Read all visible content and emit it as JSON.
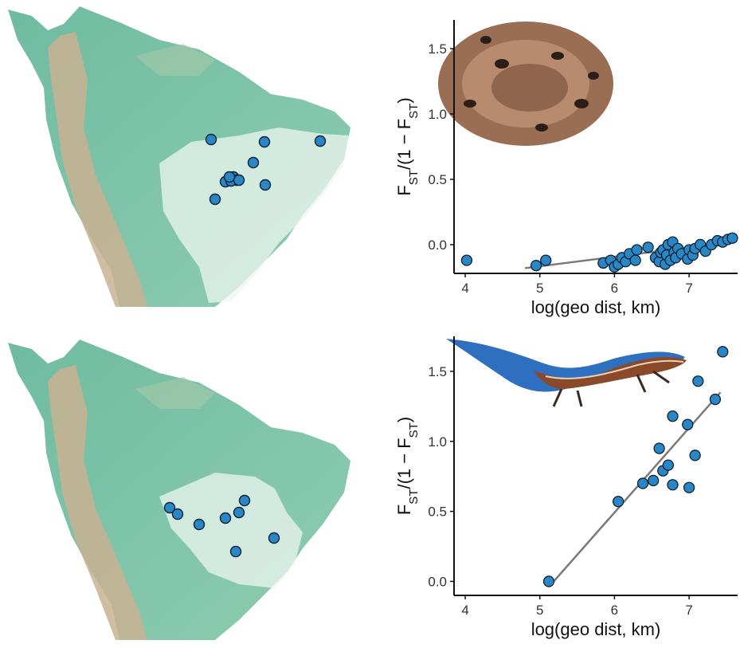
{
  "colors": {
    "point_fill": "#2a86c4",
    "point_stroke": "#0c2335",
    "fit_line": "#7a7a7a",
    "map_ocean": "#ffffff",
    "map_lowland": "#78c0a5",
    "map_highland": "#c9b18f",
    "range_fill": "#eef6ef"
  },
  "chart_data": [
    {
      "type": "scatter",
      "title": "",
      "subject": "pit viper (snake photo inset)",
      "xlabel": "log(geo dist, km)",
      "ylabel_main": "F",
      "ylabel_sub1": "ST",
      "ylabel_mid": "/(1 − F",
      "ylabel_sub2": "ST",
      "ylabel_end": ")",
      "xlim": [
        3.85,
        7.65
      ],
      "ylim": [
        -0.22,
        1.72
      ],
      "xticks": [
        4,
        5,
        6,
        7
      ],
      "yticks": [
        0.0,
        0.5,
        1.0,
        1.5
      ],
      "ytick_labels": [
        "0.0",
        "0.5",
        "1.0",
        "1.5"
      ],
      "xtick_labels": [
        "4",
        "5",
        "6",
        "7"
      ],
      "grid": false,
      "fit_line": {
        "x": [
          4.8,
          7.55
        ],
        "y": [
          -0.18,
          0.02
        ]
      },
      "points": [
        {
          "x": 4.02,
          "y": -0.12
        },
        {
          "x": 4.95,
          "y": -0.16
        },
        {
          "x": 5.08,
          "y": -0.12
        },
        {
          "x": 5.85,
          "y": -0.14
        },
        {
          "x": 5.95,
          "y": -0.12
        },
        {
          "x": 6.0,
          "y": -0.17
        },
        {
          "x": 6.05,
          "y": -0.15
        },
        {
          "x": 6.1,
          "y": -0.1
        },
        {
          "x": 6.15,
          "y": -0.13
        },
        {
          "x": 6.2,
          "y": -0.07
        },
        {
          "x": 6.28,
          "y": -0.12
        },
        {
          "x": 6.3,
          "y": -0.04
        },
        {
          "x": 6.45,
          "y": -0.02
        },
        {
          "x": 6.55,
          "y": -0.1
        },
        {
          "x": 6.6,
          "y": -0.13
        },
        {
          "x": 6.62,
          "y": -0.06
        },
        {
          "x": 6.65,
          "y": -0.04
        },
        {
          "x": 6.68,
          "y": -0.15
        },
        {
          "x": 6.7,
          "y": -0.08
        },
        {
          "x": 6.72,
          "y": 0.0
        },
        {
          "x": 6.75,
          "y": -0.12
        },
        {
          "x": 6.78,
          "y": 0.02
        },
        {
          "x": 6.8,
          "y": -0.06
        },
        {
          "x": 6.82,
          "y": -0.1
        },
        {
          "x": 6.85,
          "y": -0.03
        },
        {
          "x": 6.9,
          "y": -0.07
        },
        {
          "x": 6.98,
          "y": -0.11
        },
        {
          "x": 7.0,
          "y": -0.04
        },
        {
          "x": 7.05,
          "y": -0.08
        },
        {
          "x": 7.08,
          "y": -0.03
        },
        {
          "x": 7.15,
          "y": 0.0
        },
        {
          "x": 7.22,
          "y": -0.05
        },
        {
          "x": 7.3,
          "y": 0.0
        },
        {
          "x": 7.38,
          "y": 0.03
        },
        {
          "x": 7.45,
          "y": 0.02
        },
        {
          "x": 7.52,
          "y": 0.04
        },
        {
          "x": 7.58,
          "y": 0.05
        }
      ]
    },
    {
      "type": "scatter",
      "title": "",
      "subject": "skink (lizard photo inset)",
      "xlabel": "log(geo dist, km)",
      "ylabel_main": "F",
      "ylabel_sub1": "ST",
      "ylabel_mid": "/(1 − F",
      "ylabel_sub2": "ST",
      "ylabel_end": ")",
      "xlim": [
        3.85,
        7.65
      ],
      "ylim": [
        -0.1,
        1.75
      ],
      "xticks": [
        4,
        5,
        6,
        7
      ],
      "yticks": [
        0.0,
        0.5,
        1.0,
        1.5
      ],
      "ytick_labels": [
        "0.0",
        "0.5",
        "1.0",
        "1.5"
      ],
      "xtick_labels": [
        "4",
        "5",
        "6",
        "7"
      ],
      "grid": false,
      "fit_line": {
        "x": [
          5.12,
          7.42
        ],
        "y": [
          -0.04,
          1.35
        ]
      },
      "points": [
        {
          "x": 5.12,
          "y": 0.0
        },
        {
          "x": 6.05,
          "y": 0.57
        },
        {
          "x": 6.38,
          "y": 0.7
        },
        {
          "x": 6.52,
          "y": 0.72
        },
        {
          "x": 6.6,
          "y": 0.95
        },
        {
          "x": 6.65,
          "y": 0.79
        },
        {
          "x": 6.72,
          "y": 0.83
        },
        {
          "x": 6.78,
          "y": 0.69
        },
        {
          "x": 6.78,
          "y": 1.18
        },
        {
          "x": 6.98,
          "y": 1.12
        },
        {
          "x": 7.0,
          "y": 0.67
        },
        {
          "x": 7.08,
          "y": 0.9
        },
        {
          "x": 7.12,
          "y": 1.43
        },
        {
          "x": 7.35,
          "y": 1.3
        },
        {
          "x": 7.45,
          "y": 1.64
        }
      ]
    }
  ],
  "maps": [
    {
      "subject": "pit viper sampling localities",
      "sample_count": 12
    },
    {
      "subject": "skink sampling localities",
      "sample_count": 8
    }
  ]
}
